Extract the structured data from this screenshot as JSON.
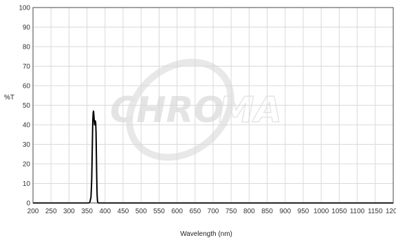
{
  "chart_data": {
    "type": "line",
    "xlabel": "Wavelength (nm)",
    "ylabel": "%T",
    "xlim": [
      200,
      1200
    ],
    "ylim": [
      0,
      100
    ],
    "x_ticks": [
      200,
      250,
      300,
      350,
      400,
      450,
      500,
      550,
      600,
      650,
      700,
      750,
      800,
      850,
      900,
      950,
      1000,
      1050,
      1100,
      1150,
      1200
    ],
    "y_ticks": [
      0,
      10,
      20,
      30,
      40,
      50,
      60,
      70,
      80,
      90,
      100
    ],
    "grid": true,
    "series": [
      {
        "color": "#000000",
        "x": [
          200,
          355,
          358,
          361,
          363,
          364,
          365,
          366,
          367,
          368,
          369,
          370,
          371,
          372,
          373,
          374,
          375,
          376,
          377,
          378,
          379,
          380,
          381,
          383,
          386,
          390,
          1200
        ],
        "y": [
          0,
          0,
          0.5,
          3,
          12,
          22,
          33,
          42,
          46,
          47,
          45,
          42,
          40,
          41,
          42,
          41,
          36,
          24,
          12,
          4,
          1,
          0.3,
          0,
          0,
          0,
          0,
          0
        ]
      }
    ]
  },
  "watermark": {
    "text_bold": "CHRO",
    "text_outline": "MA"
  }
}
